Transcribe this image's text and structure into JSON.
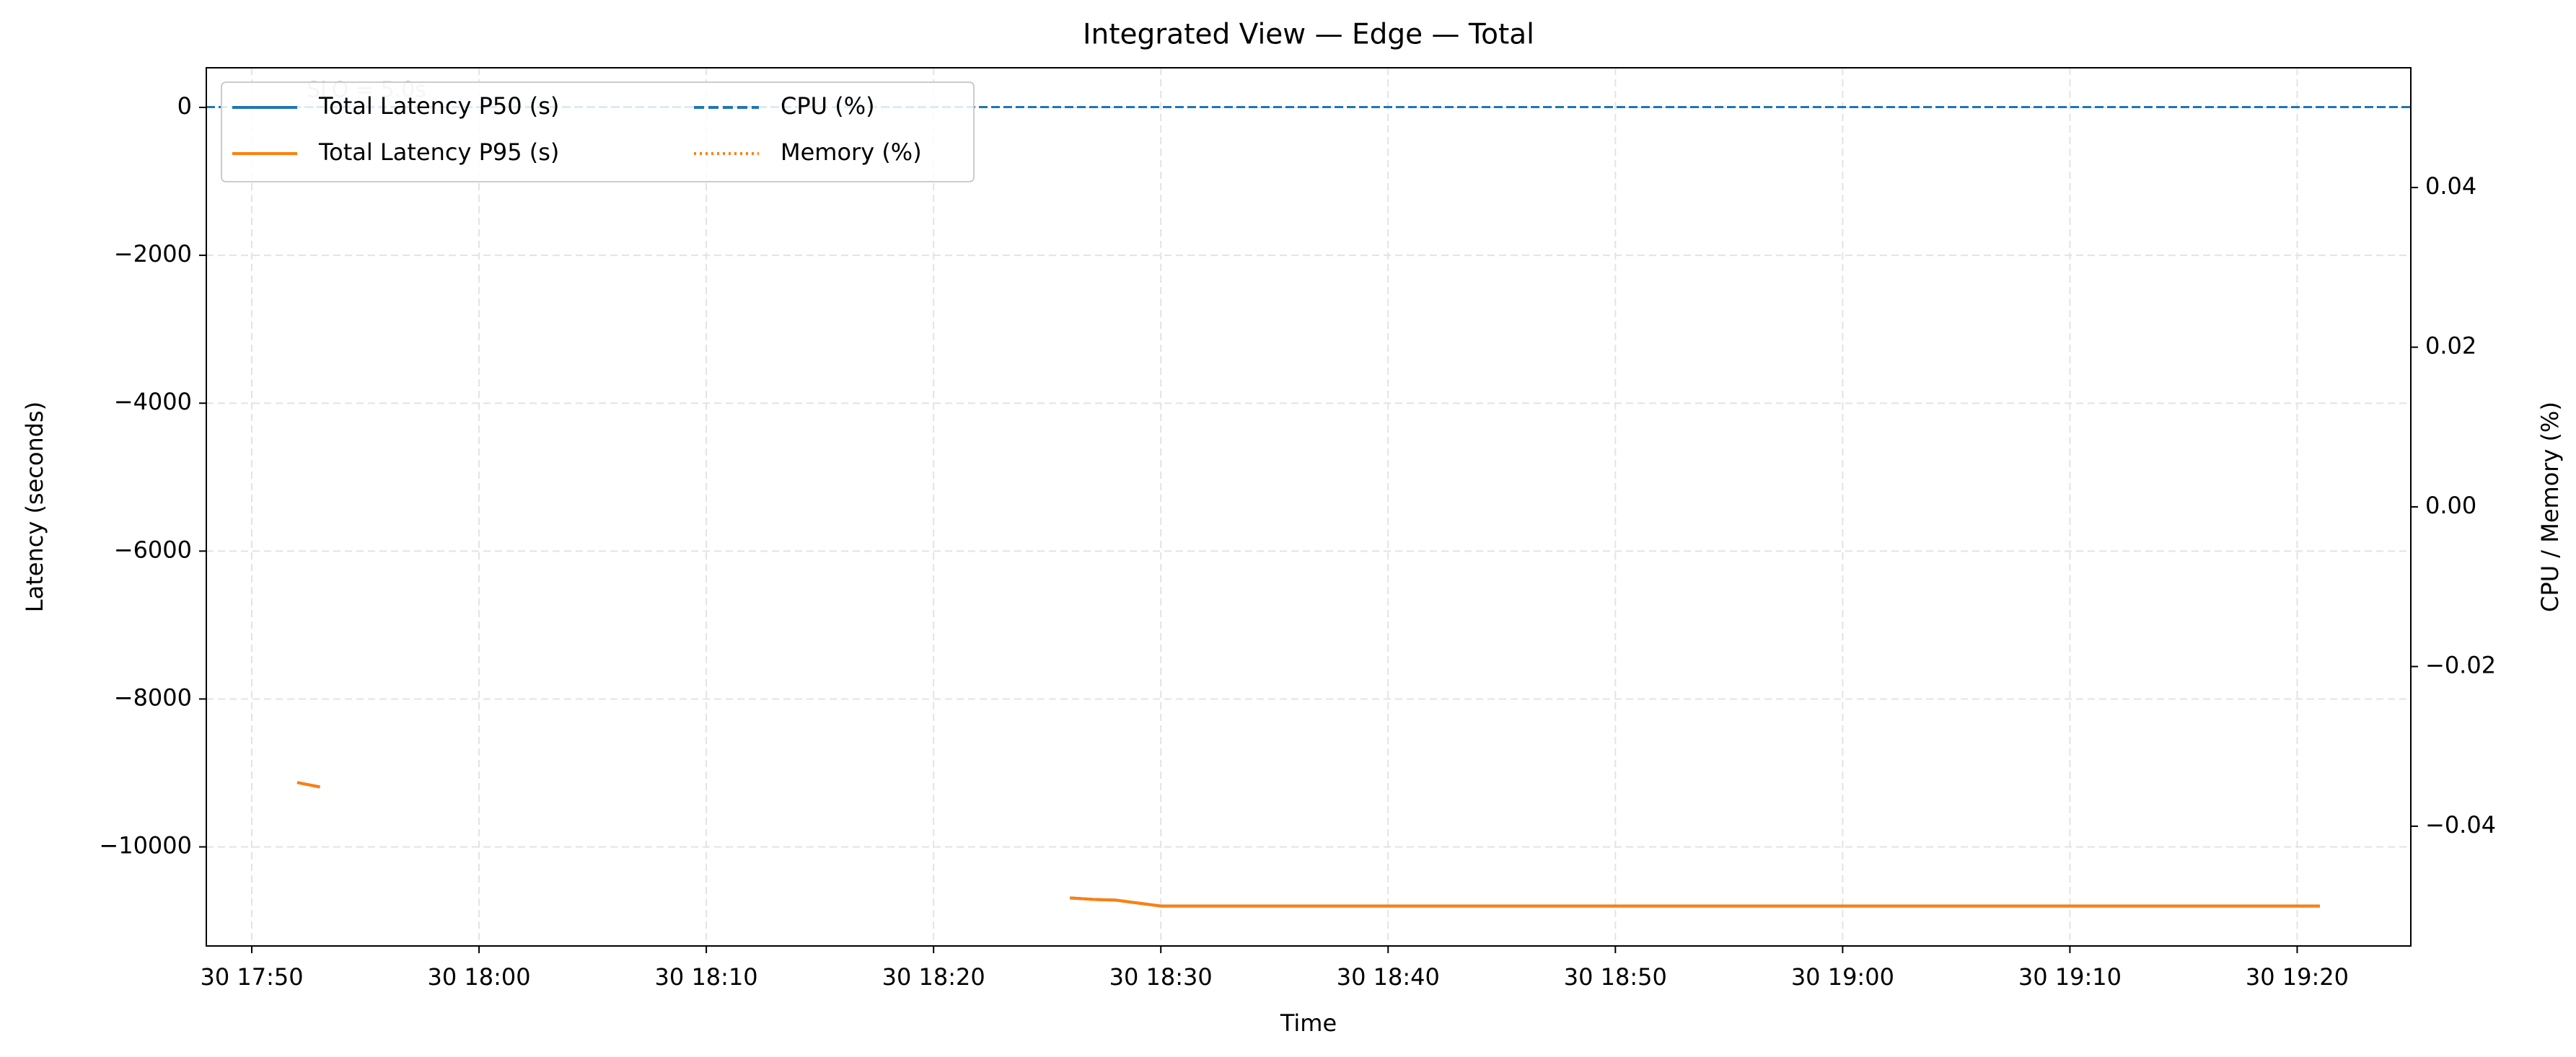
{
  "chart_data": {
    "type": "line",
    "title": "Integrated View — Edge — Total",
    "xlabel": "Time",
    "ylabel": "Latency (seconds)",
    "y2label": "CPU / Memory (%)",
    "annotation": {
      "text": "SLO = 5.0s",
      "value": 5,
      "color": "#1f77b4"
    },
    "x": [
      "30 17:52",
      "30 17:53",
      "30 18:00",
      "30 18:26",
      "30 18:27",
      "30 18:28",
      "30 18:29",
      "30 18:30",
      "30 18:40",
      "30 18:50",
      "30 19:00",
      "30 19:10",
      "30 19:21"
    ],
    "series": [
      {
        "name": "Total Latency P50 (s)",
        "color": "#1f77b4",
        "dash": "solid",
        "values": [
          -9130,
          -9190,
          null,
          -10690,
          -10710,
          -10720,
          -10760,
          -10800,
          -10800,
          -10800,
          -10800,
          -10800,
          -10800
        ]
      },
      {
        "name": "Total Latency P95 (s)",
        "color": "#ff7f0e",
        "dash": "solid",
        "values": [
          -9130,
          -9190,
          null,
          -10690,
          -10710,
          -10720,
          -10760,
          -10800,
          -10800,
          -10800,
          -10800,
          -10800,
          -10800
        ]
      },
      {
        "name": "CPU (%)",
        "color": "#1f77b4",
        "dash": "dashed",
        "axis": "y2",
        "values": [
          null,
          null,
          null,
          null,
          null,
          null,
          null,
          null,
          null,
          null,
          null,
          null,
          null
        ]
      },
      {
        "name": "Memory (%)",
        "color": "#ff7f0e",
        "dash": "dotted",
        "axis": "y2",
        "values": [
          null,
          null,
          null,
          null,
          null,
          null,
          null,
          null,
          null,
          null,
          null,
          null,
          null
        ]
      }
    ],
    "xlim": [
      "30 17:48",
      "30 19:25"
    ],
    "xticks": [
      "30 17:50",
      "30 18:00",
      "30 18:10",
      "30 18:20",
      "30 18:30",
      "30 18:40",
      "30 18:50",
      "30 19:00",
      "30 19:10",
      "30 19:20"
    ],
    "ylim": [
      -11340,
      536
    ],
    "yticks": [
      {
        "value": -10000,
        "label": "−10000"
      },
      {
        "value": -8000,
        "label": "−8000"
      },
      {
        "value": -6000,
        "label": "−6000"
      },
      {
        "value": -4000,
        "label": "−4000"
      },
      {
        "value": -2000,
        "label": "−2000"
      },
      0
    ],
    "y2lim": [
      -0.055,
      0.055
    ],
    "y2ticks": [
      {
        "value": -0.04,
        "label": "−0.04"
      },
      {
        "value": -0.02,
        "label": "−0.02"
      },
      {
        "value": 0,
        "label": "0.00"
      },
      0.02,
      0.04
    ],
    "grid": true,
    "legend": "upper left",
    "legend_columns": 2
  }
}
